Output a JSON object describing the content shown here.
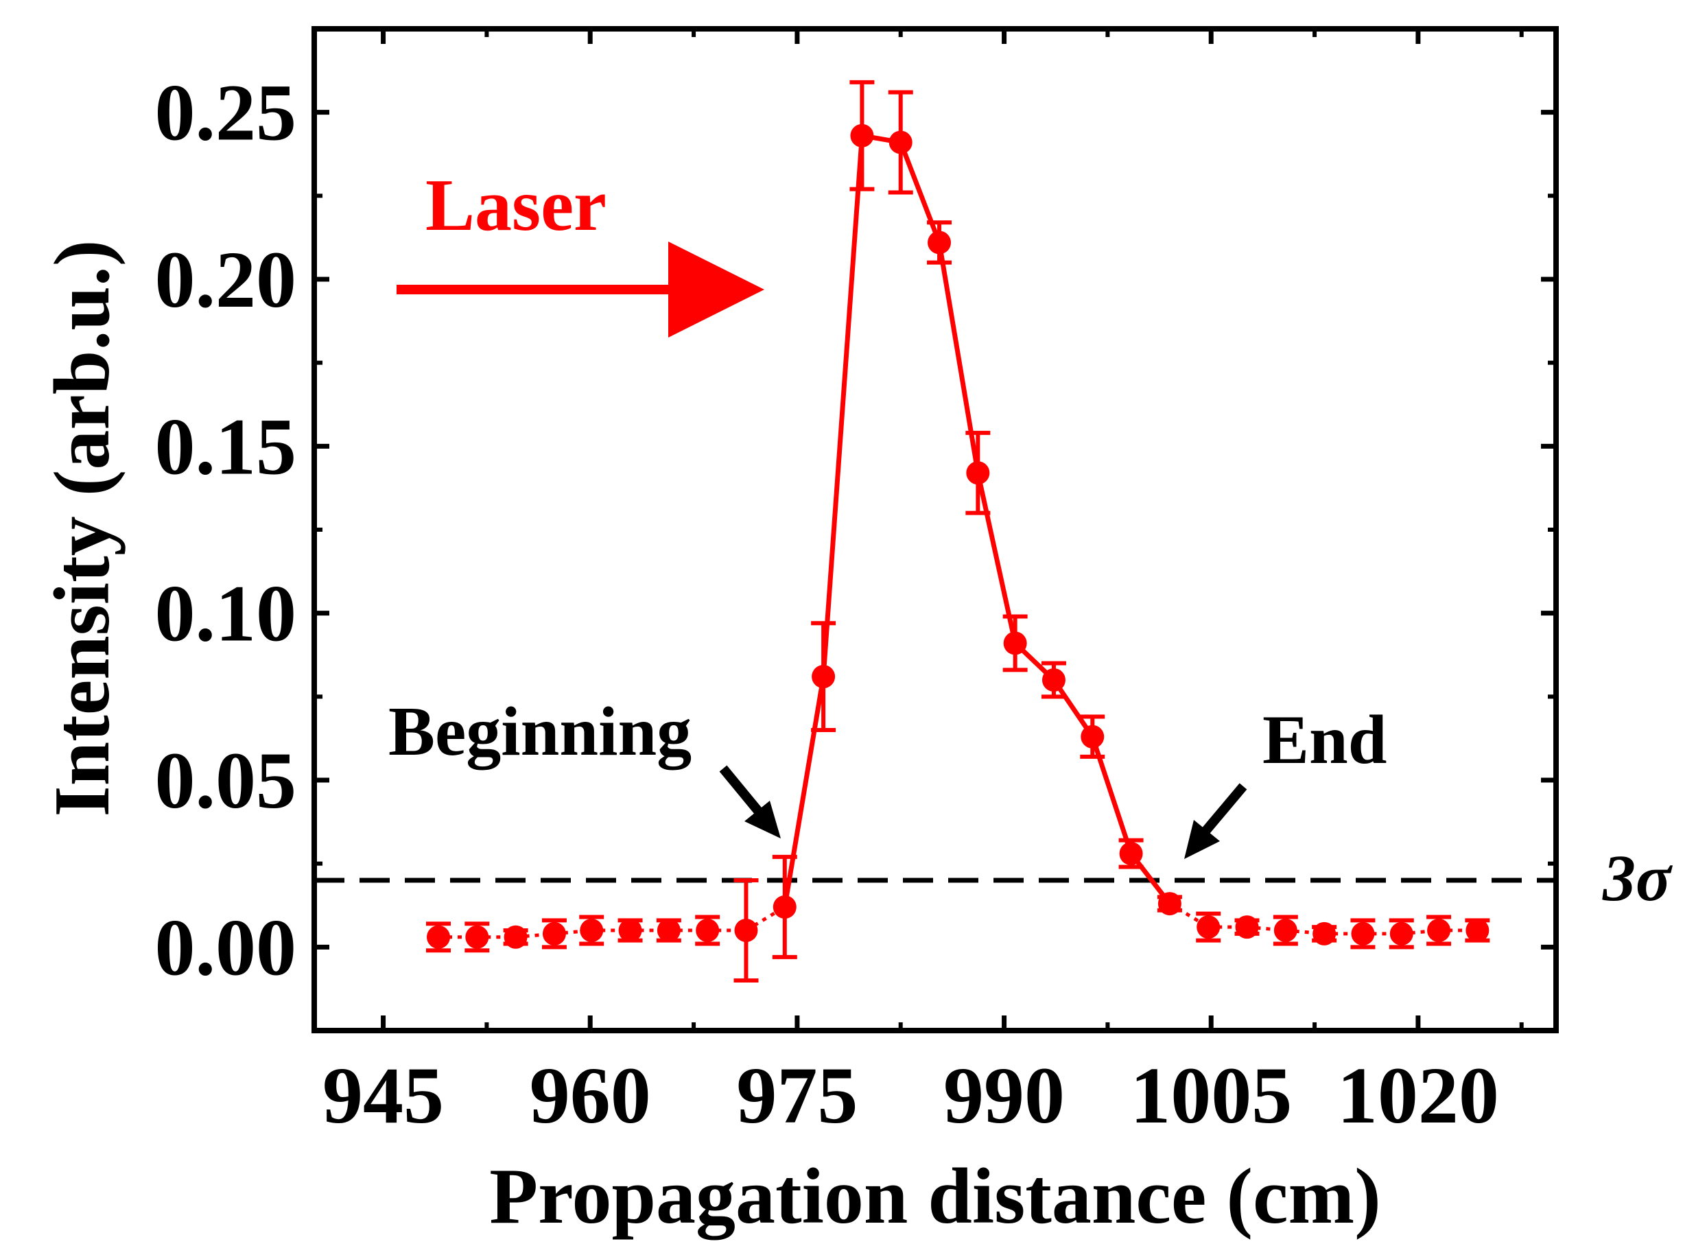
{
  "chart_data": {
    "type": "scatter",
    "xlabel": "Propagation distance (cm)",
    "ylabel": "Intensity (arb.u.)",
    "xlim": [
      940,
      1030
    ],
    "ylim": [
      -0.025,
      0.275
    ],
    "x_ticks": [
      "945",
      "960",
      "975",
      "990",
      "1005",
      "1020"
    ],
    "y_ticks": [
      "0.00",
      "0.05",
      "0.10",
      "0.15",
      "0.20",
      "0.25"
    ],
    "threshold": {
      "value": 0.02,
      "label": "3σ",
      "style": "dashed"
    },
    "series": [
      {
        "name": "Intensity",
        "color": "#ff0000",
        "x": [
          949,
          951.8,
          954.6,
          957.4,
          960.1,
          962.9,
          965.7,
          968.5,
          971.3,
          974.1,
          976.9,
          979.7,
          982.5,
          985.3,
          988.1,
          990.8,
          993.6,
          996.4,
          999.2,
          1002,
          1004.8,
          1007.6,
          1010.4,
          1013.2,
          1016,
          1018.8,
          1021.5,
          1024.3
        ],
        "y": [
          0.003,
          0.003,
          0.003,
          0.004,
          0.005,
          0.005,
          0.005,
          0.005,
          0.005,
          0.012,
          0.081,
          0.243,
          0.241,
          0.211,
          0.142,
          0.091,
          0.08,
          0.063,
          0.028,
          0.013,
          0.006,
          0.006,
          0.005,
          0.004,
          0.004,
          0.004,
          0.005,
          0.005
        ],
        "error": [
          0.004,
          0.004,
          0.002,
          0.004,
          0.004,
          0.003,
          0.003,
          0.004,
          0.015,
          0.015,
          0.016,
          0.016,
          0.015,
          0.006,
          0.012,
          0.008,
          0.005,
          0.006,
          0.004,
          0.002,
          0.004,
          0.002,
          0.004,
          0.002,
          0.004,
          0.004,
          0.004,
          0.003
        ],
        "solid_segment": [
          9,
          19
        ]
      }
    ],
    "annotations": [
      {
        "text": "Beginning",
        "points_to_x": 974.1
      },
      {
        "text": "End",
        "points_to_x": 1001
      }
    ],
    "arrow_label": "Laser"
  }
}
